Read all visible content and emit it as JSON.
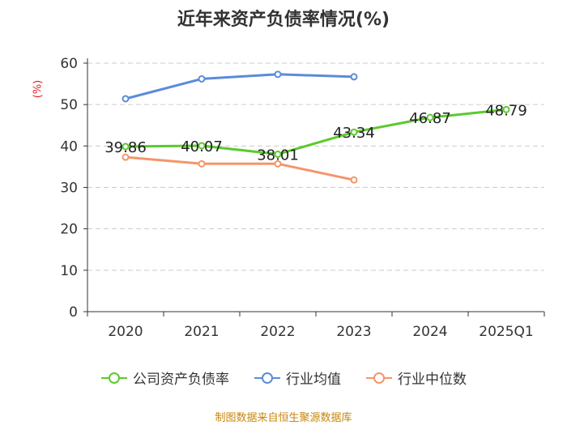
{
  "title": "近年来资产负债率情况(%)",
  "unit_label": "(%)",
  "source": "制图数据来自恒生聚源数据库",
  "chart_data": {
    "type": "line",
    "title": "近年来资产负债率情况(%)",
    "ylabel": "(%)",
    "xlabel": "",
    "categories": [
      "2020",
      "2021",
      "2022",
      "2023",
      "2024",
      "2025Q1"
    ],
    "ylim": [
      0,
      60
    ],
    "yticks": [
      0,
      10,
      20,
      30,
      40,
      50,
      60
    ],
    "grid": true,
    "legend_position": "bottom",
    "series": [
      {
        "name": "公司资产负债率",
        "color": "#5cc92e",
        "values": [
          39.86,
          40.07,
          38.01,
          43.34,
          46.87,
          48.79
        ],
        "labels": [
          "39.86",
          "40.07",
          "38.01",
          "43.34",
          "46.87",
          "48.79"
        ]
      },
      {
        "name": "行业均值",
        "color": "#5b8bd9",
        "values": [
          51.4,
          56.2,
          57.3,
          56.7,
          null,
          null
        ]
      },
      {
        "name": "行业中位数",
        "color": "#f4956a",
        "values": [
          37.3,
          35.7,
          35.7,
          31.8,
          null,
          null
        ]
      }
    ]
  }
}
